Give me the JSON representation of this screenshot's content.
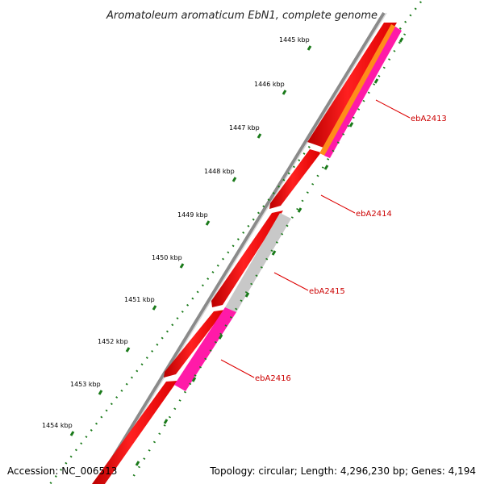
{
  "title": "Aromatoleum aromaticum EbN1, complete genome",
  "accession_text": "Accession: NC_006513",
  "topology_text": "Topology: circular; Length: 4,296,230 bp; Genes: 4,194",
  "kbp_labels": [
    "1445 kbp",
    "1446 kbp",
    "1447 kbp",
    "1448 kbp",
    "1449 kbp",
    "1450 kbp",
    "1451 kbp",
    "1452 kbp",
    "1453 kbp",
    "1454 kbp"
  ],
  "genes": [
    {
      "label": "ebA2413"
    },
    {
      "label": "ebA2414"
    },
    {
      "label": "ebA2415"
    },
    {
      "label": "ebA2416"
    }
  ],
  "colors": {
    "backbone": "#8a8a8a",
    "cds": "#ff0000",
    "orange_feature": "#ff8c1a",
    "magenta_feature": "#ff1aa8",
    "gray_feature": "#c8c8c8",
    "ticks": "#1a7a1a",
    "label_line": "#dd0000"
  }
}
